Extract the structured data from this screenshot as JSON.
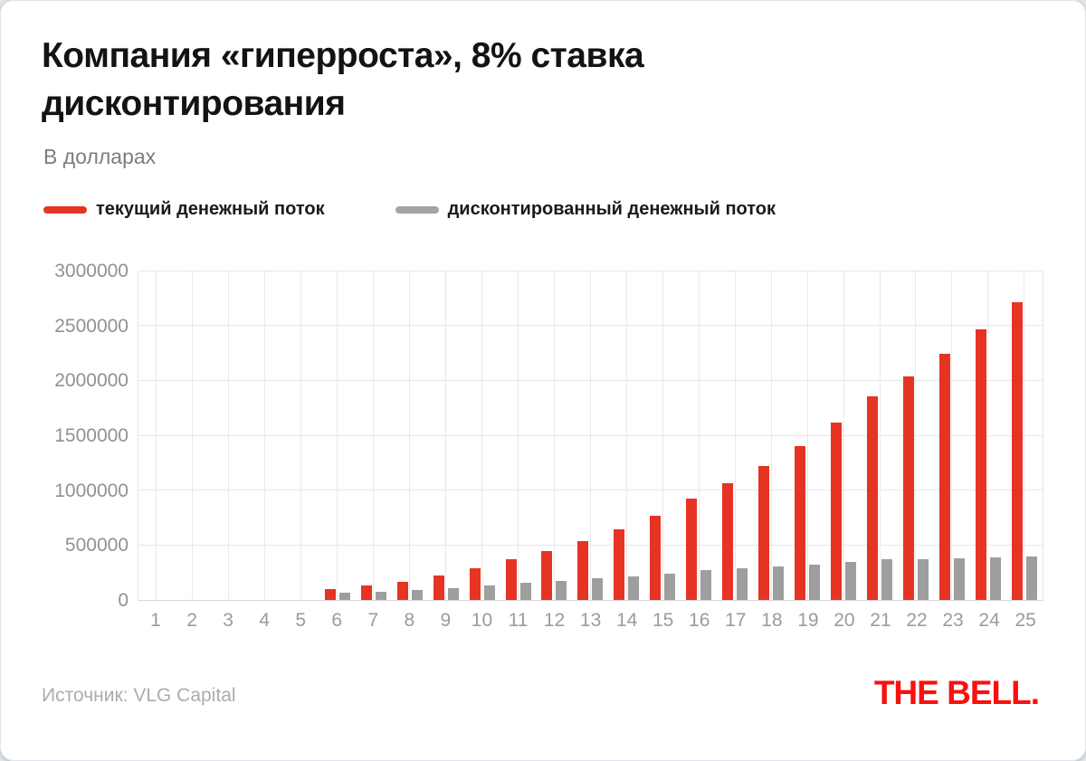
{
  "header": {
    "title": "Компания «гиперроста», 8% ставка дисконтирования",
    "subtitle": "В долларах"
  },
  "legend": {
    "items": [
      {
        "label": "текущий денежный поток",
        "color": "#e63323"
      },
      {
        "label": "дисконтированный денежный поток",
        "color": "#a3a3a3"
      }
    ]
  },
  "chart_data": {
    "type": "bar",
    "title": "Компания «гиперроста», 8% ставка дисконтирования",
    "units": "доллары",
    "categories": [
      1,
      2,
      3,
      4,
      5,
      6,
      7,
      8,
      9,
      10,
      11,
      12,
      13,
      14,
      15,
      16,
      17,
      18,
      19,
      20,
      21,
      22,
      23,
      24,
      25
    ],
    "series": [
      {
        "name": "текущий денежный поток",
        "color": "#e63323",
        "values": [
          0,
          0,
          0,
          0,
          0,
          100000,
          130000,
          169000,
          219700,
          285610,
          371293,
          445552,
          534662,
          641594,
          769913,
          923896,
          1062480,
          1221852,
          1405130,
          1615900,
          1858285,
          2044113,
          2248525,
          2473377,
          2720715
        ]
      },
      {
        "name": "дисконтированный денежный поток",
        "color": "#9e9e9e",
        "values": [
          0,
          0,
          0,
          0,
          0,
          63017,
          75854,
          91305,
          109905,
          132293,
          159242,
          176935,
          196594,
          218437,
          242709,
          269677,
          287155,
          305767,
          325585,
          346688,
          369158,
          375995,
          382958,
          390050,
          397273
        ]
      }
    ],
    "xlabel": "",
    "ylabel": "",
    "ylim": [
      0,
      3000000
    ],
    "y_ticks": [
      0,
      500000,
      1000000,
      1500000,
      2000000,
      2500000,
      3000000
    ],
    "grid": "horizontal and vertical",
    "legend_position": "top-left"
  },
  "footer": {
    "source": "Источник: VLG Capital",
    "logo": "THE BELL."
  },
  "colors": {
    "accent_red": "#e63323",
    "bar_gray": "#9e9e9e",
    "logo_red": "#fb0f0f",
    "grid": "#e7e7e7",
    "axis_text": "#9b9b9b"
  }
}
